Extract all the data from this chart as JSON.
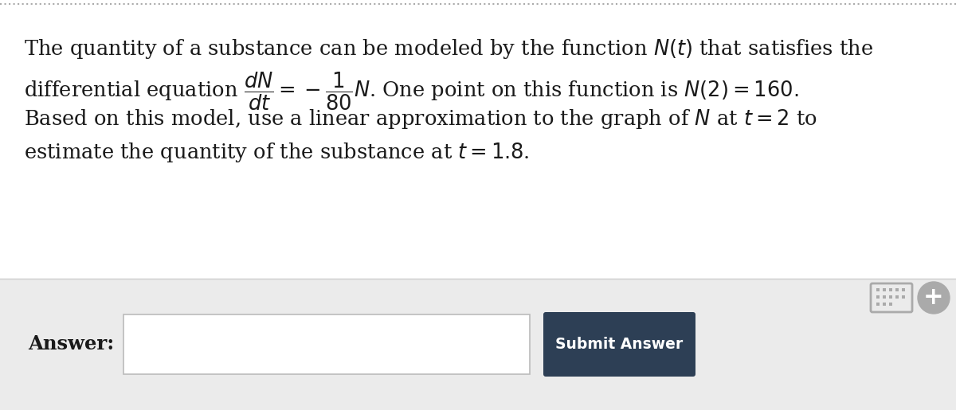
{
  "bg_color": "#ffffff",
  "top_border_color": "#aaaaaa",
  "bottom_section_bg": "#ebebeb",
  "text_color": "#1a1a1a",
  "answer_box_color": "#ffffff",
  "answer_box_border": "#bbbbbb",
  "submit_btn_color": "#2d3f55",
  "submit_btn_text_color": "#ffffff",
  "submit_btn_text": "Submit Answer",
  "answer_label": "Answer:",
  "line1": "The quantity of a substance can be modeled by the function $N(t)$ that satisfies the",
  "line2": "differential equation $\\dfrac{dN}{dt} = -\\dfrac{1}{80}N$. One point on this function is $N(2) = 160.$",
  "line3": "Based on this model, use a linear approximation to the graph of $N$ at $t = 2$ to",
  "line4": "estimate the quantity of the substance at $t = 1.8$.",
  "font_size": 18.5,
  "icon_color": "#aaaaaa",
  "plus_color": "#aaaaaa"
}
